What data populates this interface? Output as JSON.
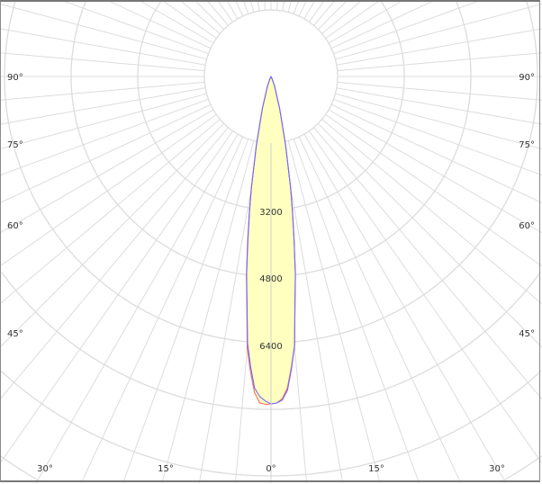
{
  "chart_data": {
    "type": "polar",
    "units_per_ring": 1600,
    "ring_labels": [
      "3200",
      "4800",
      "6400"
    ],
    "angle_labels_side": [
      "90°",
      "75°",
      "60°",
      "45°"
    ],
    "angle_labels_bottom": [
      "30°",
      "15°",
      "0°",
      "15°",
      "30°"
    ],
    "grid": true,
    "fill_color": "#ffffc0",
    "series": [
      {
        "color": "#ff6a5a",
        "angles": [
          -30,
          -25,
          -20,
          -15,
          -12,
          -10,
          -9,
          -8,
          -7,
          -6,
          -5,
          -4,
          -3,
          -2,
          -1,
          0,
          1,
          2,
          3,
          4,
          5,
          6,
          7,
          8,
          9,
          10,
          12,
          15,
          20,
          25,
          30
        ],
        "values": [
          0,
          50,
          250,
          800,
          1700,
          2700,
          3350,
          4050,
          4850,
          5550,
          6550,
          7100,
          7600,
          7850,
          7880,
          7870,
          7850,
          7750,
          7500,
          7000,
          6500,
          5500,
          4800,
          4000,
          3300,
          2700,
          1700,
          800,
          250,
          50,
          0
        ]
      },
      {
        "color": "#6a6aff",
        "angles": [
          -30,
          -25,
          -20,
          -15,
          -12,
          -10,
          -9,
          -8,
          -7,
          -6,
          -5,
          -4,
          -3,
          -2,
          -1,
          0,
          1,
          2,
          3,
          4,
          5,
          6,
          7,
          8,
          9,
          10,
          12,
          15,
          20,
          25,
          30
        ],
        "values": [
          0,
          50,
          250,
          800,
          1700,
          2700,
          3300,
          4000,
          4800,
          5500,
          6450,
          7000,
          7500,
          7700,
          7800,
          7870,
          7850,
          7780,
          7550,
          7050,
          6500,
          5500,
          4800,
          4000,
          3300,
          2700,
          1700,
          800,
          250,
          50,
          0
        ]
      }
    ]
  }
}
